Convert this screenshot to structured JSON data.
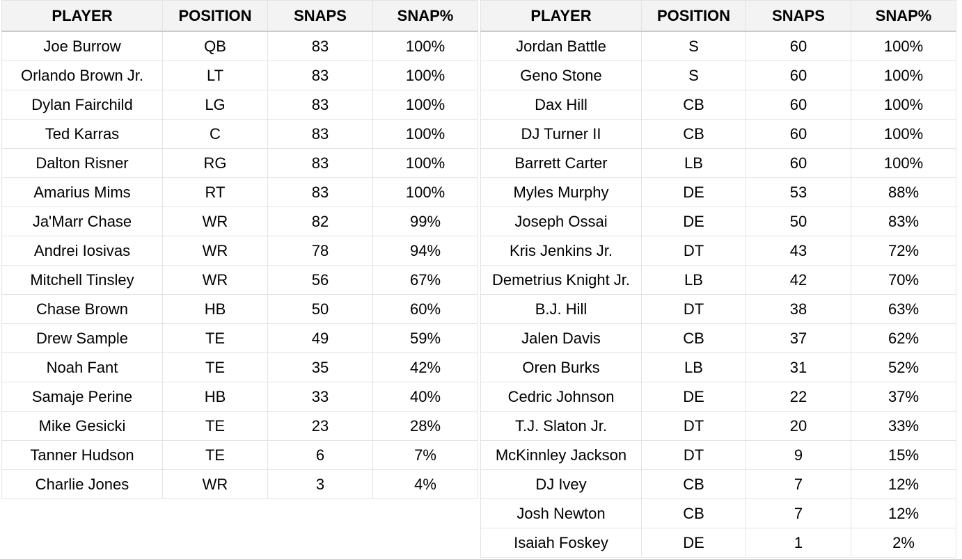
{
  "headers": [
    "PLAYER",
    "POSITION",
    "SNAPS",
    "SNAP%"
  ],
  "offense": [
    [
      "Joe Burrow",
      "QB",
      "83",
      "100%"
    ],
    [
      "Orlando Brown Jr.",
      "LT",
      "83",
      "100%"
    ],
    [
      "Dylan Fairchild",
      "LG",
      "83",
      "100%"
    ],
    [
      "Ted Karras",
      "C",
      "83",
      "100%"
    ],
    [
      "Dalton Risner",
      "RG",
      "83",
      "100%"
    ],
    [
      "Amarius Mims",
      "RT",
      "83",
      "100%"
    ],
    [
      "Ja'Marr Chase",
      "WR",
      "82",
      "99%"
    ],
    [
      "Andrei Iosivas",
      "WR",
      "78",
      "94%"
    ],
    [
      "Mitchell Tinsley",
      "WR",
      "56",
      "67%"
    ],
    [
      "Chase Brown",
      "HB",
      "50",
      "60%"
    ],
    [
      "Drew Sample",
      "TE",
      "49",
      "59%"
    ],
    [
      "Noah Fant",
      "TE",
      "35",
      "42%"
    ],
    [
      "Samaje Perine",
      "HB",
      "33",
      "40%"
    ],
    [
      "Mike Gesicki",
      "TE",
      "23",
      "28%"
    ],
    [
      "Tanner Hudson",
      "TE",
      "6",
      "7%"
    ],
    [
      "Charlie Jones",
      "WR",
      "3",
      "4%"
    ]
  ],
  "defense": [
    [
      "Jordan Battle",
      "S",
      "60",
      "100%"
    ],
    [
      "Geno Stone",
      "S",
      "60",
      "100%"
    ],
    [
      "Dax Hill",
      "CB",
      "60",
      "100%"
    ],
    [
      "DJ Turner II",
      "CB",
      "60",
      "100%"
    ],
    [
      "Barrett Carter",
      "LB",
      "60",
      "100%"
    ],
    [
      "Myles Murphy",
      "DE",
      "53",
      "88%"
    ],
    [
      "Joseph Ossai",
      "DE",
      "50",
      "83%"
    ],
    [
      "Kris Jenkins Jr.",
      "DT",
      "43",
      "72%"
    ],
    [
      "Demetrius Knight Jr.",
      "LB",
      "42",
      "70%"
    ],
    [
      "B.J. Hill",
      "DT",
      "38",
      "63%"
    ],
    [
      "Jalen Davis",
      "CB",
      "37",
      "62%"
    ],
    [
      "Oren Burks",
      "LB",
      "31",
      "52%"
    ],
    [
      "Cedric Johnson",
      "DE",
      "22",
      "37%"
    ],
    [
      "T.J. Slaton Jr.",
      "DT",
      "20",
      "33%"
    ],
    [
      "McKinnley Jackson",
      "DT",
      "9",
      "15%"
    ],
    [
      "DJ Ivey",
      "CB",
      "7",
      "12%"
    ],
    [
      "Josh Newton",
      "CB",
      "7",
      "12%"
    ],
    [
      "Isaiah Foskey",
      "DE",
      "1",
      "2%"
    ]
  ]
}
